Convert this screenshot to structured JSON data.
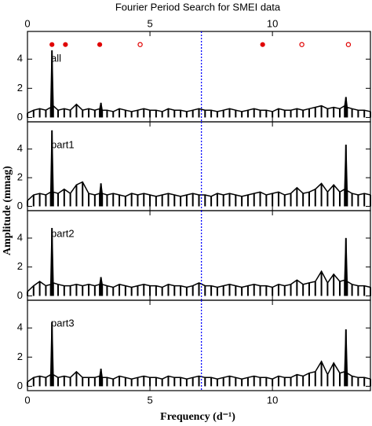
{
  "chart_data": {
    "type": "line",
    "title": "Fourier Period Search for SMEI data",
    "xlabel": "Frequency (d⁻¹)",
    "ylabel": "Amplitude (mmag)",
    "xlim": [
      0,
      14
    ],
    "xticks": [
      0,
      5,
      10
    ],
    "vline": 7.1,
    "vline_color": "#0000ff",
    "marker_color": "#e00000",
    "markers": [
      {
        "x": 1.0,
        "y": 5.0,
        "filled": true
      },
      {
        "x": 1.55,
        "y": 5.0,
        "filled": true
      },
      {
        "x": 2.95,
        "y": 5.0,
        "filled": true
      },
      {
        "x": 4.6,
        "y": 5.0,
        "filled": false
      },
      {
        "x": 9.6,
        "y": 5.0,
        "filled": true
      },
      {
        "x": 11.2,
        "y": 5.0,
        "filled": false
      },
      {
        "x": 13.1,
        "y": 5.0,
        "filled": false
      }
    ],
    "panels": [
      {
        "label": "all",
        "color": "#000000",
        "ylim": [
          -0.3,
          5.9
        ],
        "yticks": [
          0,
          2,
          4
        ],
        "x": [
          0,
          0.25,
          0.5,
          0.75,
          0.95,
          1,
          1.05,
          1.25,
          1.5,
          1.75,
          2,
          2.25,
          2.5,
          2.75,
          2.95,
          3,
          3.05,
          3.25,
          3.5,
          3.75,
          4,
          4.25,
          4.5,
          4.75,
          5,
          5.25,
          5.5,
          5.75,
          6,
          6.25,
          6.5,
          6.75,
          7,
          7.25,
          7.5,
          7.75,
          8,
          8.25,
          8.5,
          8.75,
          9,
          9.25,
          9.5,
          9.75,
          10,
          10.25,
          10.5,
          10.75,
          11,
          11.25,
          11.5,
          11.75,
          12,
          12.25,
          12.5,
          12.75,
          12.95,
          13,
          13.05,
          13.25,
          13.5,
          13.75,
          14
        ],
        "values": [
          0.3,
          0.5,
          0.6,
          0.5,
          0.7,
          4.6,
          0.8,
          0.5,
          0.6,
          0.5,
          0.9,
          0.5,
          0.6,
          0.5,
          0.6,
          1.0,
          0.5,
          0.5,
          0.4,
          0.6,
          0.5,
          0.4,
          0.5,
          0.6,
          0.5,
          0.5,
          0.4,
          0.6,
          0.5,
          0.5,
          0.4,
          0.5,
          0.6,
          0.5,
          0.5,
          0.4,
          0.5,
          0.6,
          0.5,
          0.4,
          0.5,
          0.6,
          0.5,
          0.5,
          0.4,
          0.6,
          0.5,
          0.5,
          0.6,
          0.5,
          0.6,
          0.7,
          0.8,
          0.6,
          0.7,
          0.6,
          0.8,
          1.4,
          0.7,
          0.6,
          0.5,
          0.5,
          0.4
        ]
      },
      {
        "label": "part1",
        "color": "#000000",
        "ylim": [
          -0.3,
          5.9
        ],
        "yticks": [
          0,
          2,
          4
        ],
        "x": [
          0,
          0.25,
          0.5,
          0.75,
          0.95,
          1,
          1.05,
          1.25,
          1.5,
          1.75,
          2,
          2.25,
          2.5,
          2.75,
          2.95,
          3,
          3.05,
          3.25,
          3.5,
          3.75,
          4,
          4.25,
          4.5,
          4.75,
          5,
          5.25,
          5.5,
          5.75,
          6,
          6.25,
          6.5,
          6.75,
          7,
          7.25,
          7.5,
          7.75,
          8,
          8.25,
          8.5,
          8.75,
          9,
          9.25,
          9.5,
          9.75,
          10,
          10.25,
          10.5,
          10.75,
          11,
          11.25,
          11.5,
          11.75,
          12,
          12.25,
          12.5,
          12.75,
          12.95,
          13,
          13.05,
          13.25,
          13.5,
          13.75,
          14
        ],
        "values": [
          0.4,
          0.8,
          0.9,
          0.8,
          1.0,
          5.3,
          1.0,
          0.9,
          1.2,
          0.9,
          1.5,
          1.7,
          0.9,
          0.8,
          0.9,
          1.6,
          0.9,
          0.8,
          0.9,
          0.8,
          0.7,
          0.9,
          0.8,
          0.9,
          0.8,
          0.7,
          0.8,
          0.9,
          0.8,
          0.7,
          0.8,
          0.9,
          0.8,
          0.8,
          0.7,
          0.9,
          0.8,
          0.9,
          0.8,
          0.7,
          0.8,
          0.9,
          1.0,
          0.8,
          0.9,
          1.0,
          0.8,
          0.9,
          1.3,
          0.9,
          1.0,
          1.2,
          1.6,
          1.0,
          1.5,
          1.0,
          1.2,
          4.3,
          1.1,
          0.9,
          0.8,
          0.9,
          0.8
        ]
      },
      {
        "label": "part2",
        "color": "#000000",
        "ylim": [
          -0.3,
          5.9
        ],
        "yticks": [
          0,
          2,
          4
        ],
        "x": [
          0,
          0.25,
          0.5,
          0.75,
          0.95,
          1,
          1.05,
          1.25,
          1.5,
          1.75,
          2,
          2.25,
          2.5,
          2.75,
          2.95,
          3,
          3.05,
          3.25,
          3.5,
          3.75,
          4,
          4.25,
          4.5,
          4.75,
          5,
          5.25,
          5.5,
          5.75,
          6,
          6.25,
          6.5,
          6.75,
          7,
          7.25,
          7.5,
          7.75,
          8,
          8.25,
          8.5,
          8.75,
          9,
          9.25,
          9.5,
          9.75,
          10,
          10.25,
          10.5,
          10.75,
          11,
          11.25,
          11.5,
          11.75,
          12,
          12.25,
          12.5,
          12.75,
          12.95,
          13,
          13.05,
          13.25,
          13.5,
          13.75,
          14
        ],
        "values": [
          0.3,
          0.7,
          1.0,
          0.7,
          0.8,
          4.7,
          0.9,
          0.8,
          0.7,
          0.7,
          0.8,
          0.7,
          0.8,
          0.7,
          0.8,
          1.3,
          0.8,
          0.7,
          0.6,
          0.8,
          0.7,
          0.6,
          0.7,
          0.8,
          0.7,
          0.7,
          0.6,
          0.8,
          0.7,
          0.7,
          0.6,
          0.7,
          0.9,
          0.7,
          0.7,
          0.6,
          0.7,
          0.8,
          0.7,
          0.6,
          0.7,
          0.8,
          0.7,
          0.7,
          0.6,
          0.8,
          0.7,
          0.8,
          1.1,
          0.8,
          0.9,
          1.0,
          1.7,
          0.9,
          1.5,
          1.0,
          1.1,
          4.0,
          1.0,
          0.8,
          0.7,
          0.7,
          0.6
        ]
      },
      {
        "label": "part3",
        "color": "#000000",
        "ylim": [
          -0.3,
          5.9
        ],
        "yticks": [
          0,
          2,
          4
        ],
        "x": [
          0,
          0.25,
          0.5,
          0.75,
          0.95,
          1,
          1.05,
          1.25,
          1.5,
          1.75,
          2,
          2.25,
          2.5,
          2.75,
          2.95,
          3,
          3.05,
          3.25,
          3.5,
          3.75,
          4,
          4.25,
          4.5,
          4.75,
          5,
          5.25,
          5.5,
          5.75,
          6,
          6.25,
          6.5,
          6.75,
          7,
          7.25,
          7.5,
          7.75,
          8,
          8.25,
          8.5,
          8.75,
          9,
          9.25,
          9.5,
          9.75,
          10,
          10.25,
          10.5,
          10.75,
          11,
          11.25,
          11.5,
          11.75,
          12,
          12.25,
          12.5,
          12.75,
          12.95,
          13,
          13.05,
          13.25,
          13.5,
          13.75,
          14
        ],
        "values": [
          0.3,
          0.6,
          0.7,
          0.6,
          0.8,
          4.4,
          0.8,
          0.6,
          0.7,
          0.6,
          1.0,
          0.6,
          0.6,
          0.6,
          0.7,
          1.2,
          0.6,
          0.6,
          0.5,
          0.7,
          0.6,
          0.5,
          0.6,
          0.7,
          0.6,
          0.6,
          0.5,
          0.7,
          0.6,
          0.6,
          0.5,
          0.6,
          0.7,
          0.6,
          0.6,
          0.5,
          0.6,
          0.7,
          0.6,
          0.5,
          0.6,
          0.7,
          0.6,
          0.6,
          0.5,
          0.7,
          0.6,
          0.6,
          0.8,
          0.7,
          0.9,
          1.0,
          1.7,
          0.8,
          1.6,
          0.9,
          1.0,
          3.9,
          0.9,
          0.7,
          0.6,
          0.6,
          0.5
        ]
      }
    ]
  }
}
